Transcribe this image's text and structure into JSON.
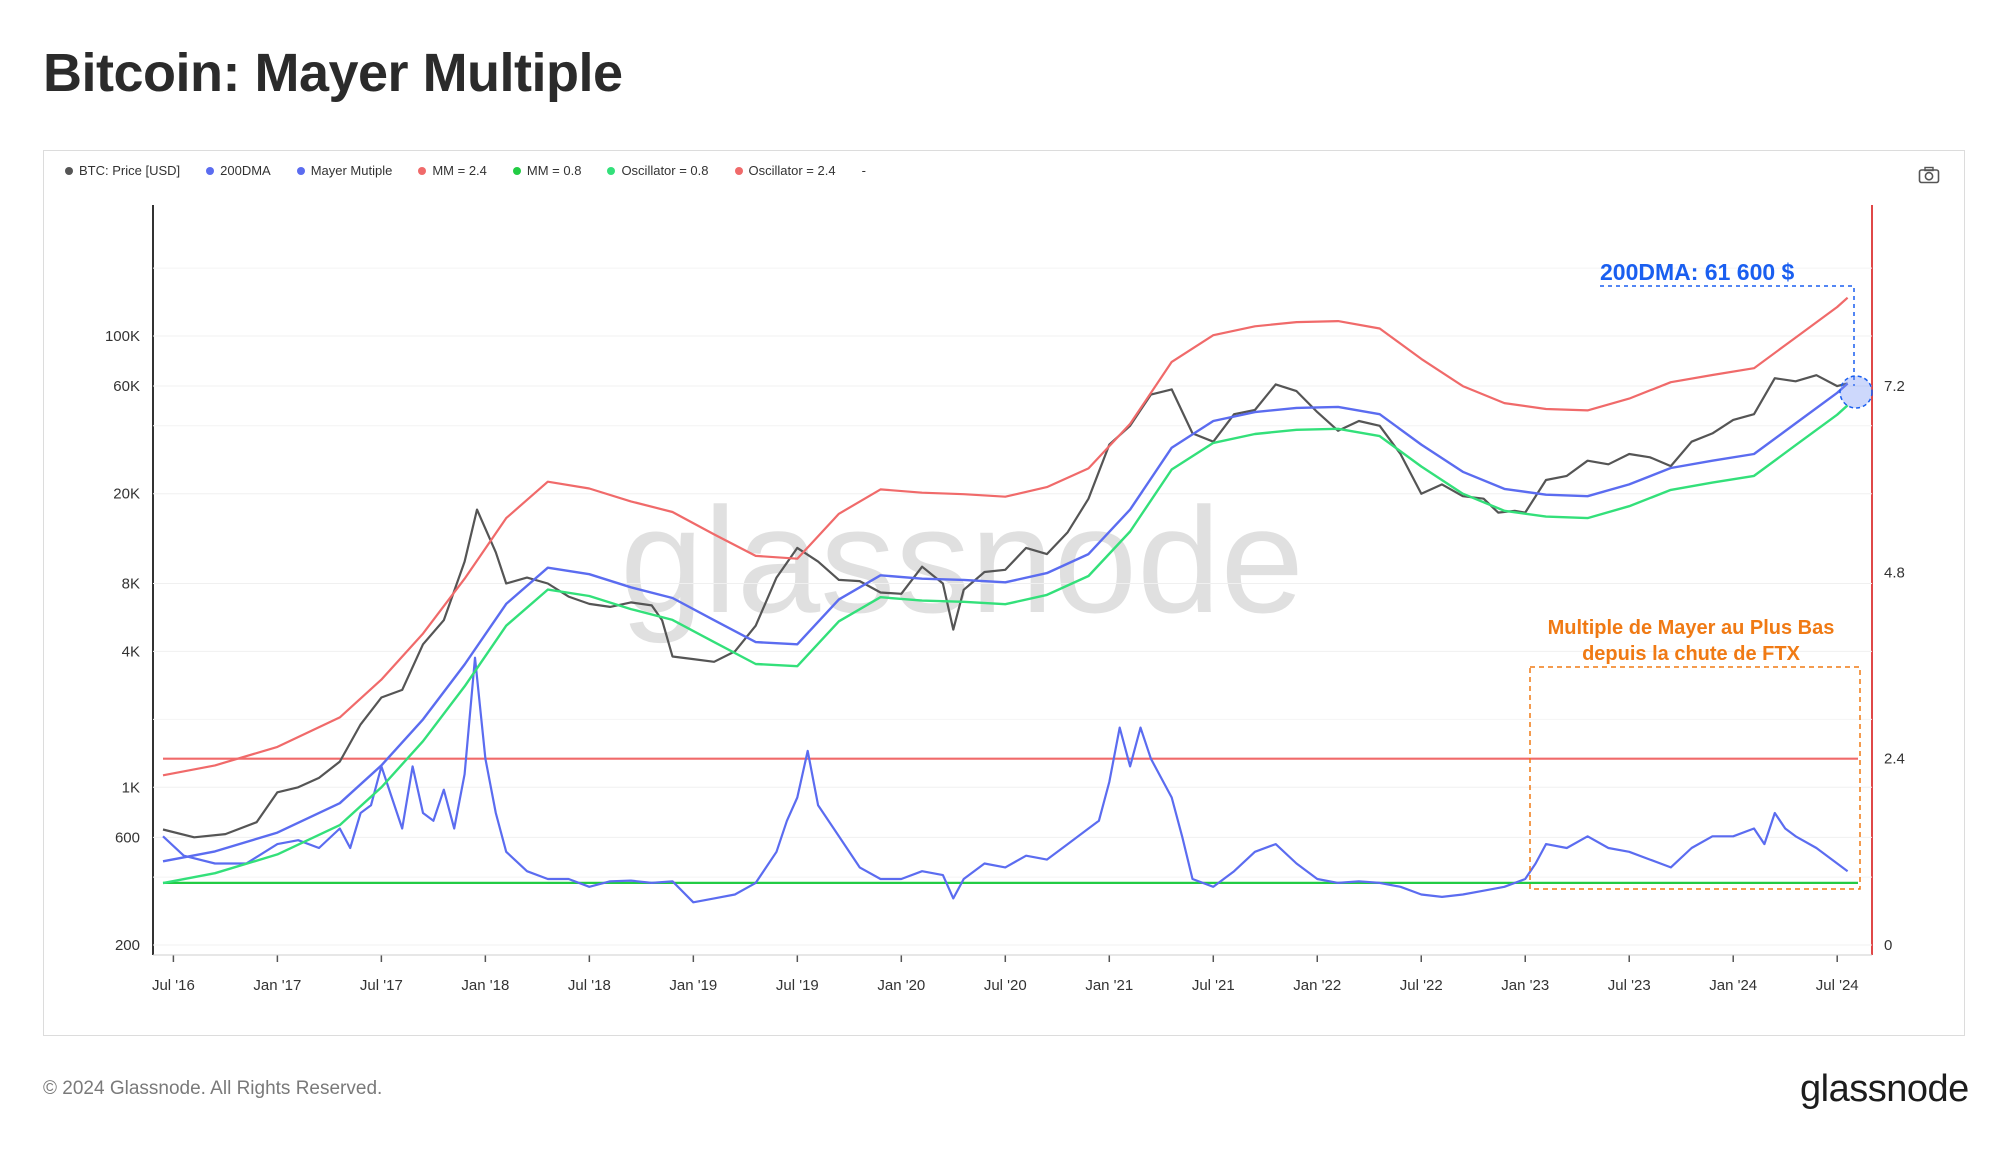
{
  "title": "Bitcoin: Mayer Multiple",
  "legend": [
    {
      "label": "BTC: Price [USD]",
      "color": "#555555"
    },
    {
      "label": "200DMA",
      "color": "#5b6cf0"
    },
    {
      "label": "Mayer Mutiple",
      "color": "#5b6cf0"
    },
    {
      "label": "MM = 2.4",
      "color": "#f06a6a"
    },
    {
      "label": "MM = 0.8",
      "color": "#22cc44"
    },
    {
      "label": "Oscillator = 0.8",
      "color": "#33e07a"
    },
    {
      "label": "Oscillator = 2.4",
      "color": "#f06a6a"
    },
    {
      "label": "-",
      "color": "transparent"
    }
  ],
  "watermark": "glassnode",
  "annotations": {
    "dma": "200DMA: 61 600 $",
    "ftx_line1": "Multiple de Mayer au Plus Bas",
    "ftx_line2": "depuis la chute de FTX"
  },
  "footer": {
    "copyright": "© 2024 Glassnode. All Rights Reserved.",
    "brand": "glassnode"
  },
  "colors": {
    "price": "#555555",
    "dma": "#5b6cf0",
    "mayer": "#5b6cf0",
    "upper_band": "#f06a6a",
    "lower_band": "#33e07a",
    "osc_high": "#f06a6a",
    "osc_low": "#22cc44",
    "dma_annotation": "#1a5ff0",
    "ftx_annotation": "#f07a14"
  },
  "chart_data": {
    "type": "line",
    "y_left_scale": "log",
    "y_left_ticks": [
      "200",
      "600",
      "1K",
      "4K",
      "8K",
      "20K",
      "60K",
      "100K"
    ],
    "y_left_tick_values": [
      200,
      600,
      1000,
      4000,
      8000,
      20000,
      60000,
      100000
    ],
    "y_right_ticks": [
      "0",
      "2.4",
      "4.8",
      "7.2"
    ],
    "y_right_tick_values": [
      0,
      2.4,
      4.8,
      7.2
    ],
    "x_ticks": [
      "Jul '16",
      "Jan '17",
      "Jul '17",
      "Jan '18",
      "Jul '18",
      "Jan '19",
      "Jul '19",
      "Jan '20",
      "Jul '20",
      "Jan '21",
      "Jul '21",
      "Jan '22",
      "Jul '22",
      "Jan '23",
      "Jul '23",
      "Jan '24",
      "Jul '24"
    ],
    "x_tick_values": [
      2016.5,
      2017.0,
      2017.5,
      2018.0,
      2018.5,
      2019.0,
      2019.5,
      2020.0,
      2020.5,
      2021.0,
      2021.5,
      2022.0,
      2022.5,
      2023.0,
      2023.5,
      2024.0,
      2024.5
    ],
    "x_range": [
      2016.45,
      2024.6
    ],
    "oscillator_levels": {
      "high": 2.4,
      "low": 0.8
    },
    "series": [
      {
        "name": "BTC: Price [USD]",
        "axis": "left",
        "x": [
          2016.45,
          2016.6,
          2016.75,
          2016.9,
          2017.0,
          2017.1,
          2017.2,
          2017.3,
          2017.4,
          2017.5,
          2017.6,
          2017.7,
          2017.8,
          2017.9,
          2017.96,
          2018.0,
          2018.05,
          2018.1,
          2018.2,
          2018.3,
          2018.4,
          2018.5,
          2018.6,
          2018.7,
          2018.8,
          2018.85,
          2018.9,
          2019.0,
          2019.1,
          2019.2,
          2019.3,
          2019.4,
          2019.5,
          2019.6,
          2019.7,
          2019.8,
          2019.9,
          2020.0,
          2020.1,
          2020.2,
          2020.25,
          2020.3,
          2020.4,
          2020.5,
          2020.6,
          2020.7,
          2020.8,
          2020.9,
          2021.0,
          2021.1,
          2021.2,
          2021.3,
          2021.4,
          2021.5,
          2021.6,
          2021.7,
          2021.8,
          2021.9,
          2022.0,
          2022.1,
          2022.2,
          2022.3,
          2022.4,
          2022.5,
          2022.6,
          2022.7,
          2022.8,
          2022.87,
          2022.95,
          2023.0,
          2023.1,
          2023.2,
          2023.3,
          2023.4,
          2023.5,
          2023.6,
          2023.7,
          2023.8,
          2023.9,
          2024.0,
          2024.1,
          2024.2,
          2024.3,
          2024.4,
          2024.5,
          2024.55
        ],
        "y": [
          650,
          600,
          620,
          700,
          950,
          1000,
          1100,
          1300,
          1900,
          2500,
          2700,
          4300,
          5500,
          10000,
          17000,
          14000,
          11000,
          8000,
          8500,
          8000,
          7000,
          6500,
          6300,
          6600,
          6400,
          5500,
          3800,
          3700,
          3600,
          4000,
          5200,
          8500,
          11500,
          10000,
          8300,
          8200,
          7300,
          7200,
          9500,
          8000,
          5000,
          7500,
          9000,
          9200,
          11500,
          10800,
          13500,
          19000,
          33000,
          40000,
          55000,
          58000,
          37000,
          34000,
          45000,
          47000,
          61000,
          57000,
          46000,
          38000,
          42000,
          40000,
          30000,
          20000,
          22000,
          19500,
          19000,
          16500,
          16800,
          16500,
          23000,
          24000,
          28000,
          27000,
          30000,
          29000,
          26500,
          34000,
          37000,
          42500,
          45000,
          65000,
          63000,
          67000,
          60000,
          61600
        ]
      },
      {
        "name": "200DMA",
        "axis": "left",
        "x": [
          2016.45,
          2016.7,
          2017.0,
          2017.3,
          2017.5,
          2017.7,
          2017.9,
          2018.1,
          2018.3,
          2018.5,
          2018.7,
          2018.9,
          2019.1,
          2019.3,
          2019.5,
          2019.7,
          2019.9,
          2020.1,
          2020.3,
          2020.5,
          2020.7,
          2020.9,
          2021.1,
          2021.3,
          2021.5,
          2021.7,
          2021.9,
          2022.1,
          2022.3,
          2022.5,
          2022.7,
          2022.9,
          2023.1,
          2023.3,
          2023.5,
          2023.7,
          2023.9,
          2024.1,
          2024.3,
          2024.5,
          2024.55
        ],
        "y": [
          470,
          520,
          630,
          850,
          1250,
          2000,
          3500,
          6500,
          9400,
          8800,
          7700,
          6900,
          5500,
          4400,
          4300,
          6800,
          8700,
          8400,
          8300,
          8100,
          8900,
          10800,
          17000,
          32000,
          42000,
          46000,
          48000,
          48500,
          45000,
          33000,
          25000,
          21000,
          19800,
          19500,
          22000,
          26000,
          28000,
          30000,
          41000,
          56000,
          61600
        ]
      },
      {
        "name": "Mayer Mutiple",
        "axis": "right",
        "x": [
          2016.45,
          2016.55,
          2016.7,
          2016.85,
          2017.0,
          2017.1,
          2017.2,
          2017.3,
          2017.35,
          2017.4,
          2017.45,
          2017.5,
          2017.55,
          2017.6,
          2017.65,
          2017.7,
          2017.75,
          2017.8,
          2017.85,
          2017.9,
          2017.95,
          2018.0,
          2018.05,
          2018.1,
          2018.2,
          2018.3,
          2018.4,
          2018.5,
          2018.6,
          2018.7,
          2018.8,
          2018.9,
          2019.0,
          2019.1,
          2019.2,
          2019.3,
          2019.4,
          2019.45,
          2019.5,
          2019.55,
          2019.6,
          2019.7,
          2019.8,
          2019.9,
          2020.0,
          2020.1,
          2020.2,
          2020.25,
          2020.3,
          2020.4,
          2020.5,
          2020.6,
          2020.7,
          2020.8,
          2020.9,
          2020.95,
          2021.0,
          2021.05,
          2021.1,
          2021.15,
          2021.2,
          2021.3,
          2021.35,
          2021.4,
          2021.5,
          2021.6,
          2021.7,
          2021.8,
          2021.9,
          2022.0,
          2022.1,
          2022.2,
          2022.3,
          2022.4,
          2022.5,
          2022.6,
          2022.7,
          2022.8,
          2022.9,
          2023.0,
          2023.05,
          2023.1,
          2023.2,
          2023.3,
          2023.4,
          2023.5,
          2023.6,
          2023.7,
          2023.8,
          2023.9,
          2024.0,
          2024.1,
          2024.15,
          2024.2,
          2024.25,
          2024.3,
          2024.4,
          2024.5,
          2024.55
        ],
        "y": [
          1.4,
          1.15,
          1.05,
          1.05,
          1.3,
          1.35,
          1.25,
          1.5,
          1.25,
          1.7,
          1.8,
          2.3,
          1.9,
          1.5,
          2.3,
          1.7,
          1.6,
          2.0,
          1.5,
          2.2,
          3.7,
          2.4,
          1.7,
          1.2,
          0.95,
          0.85,
          0.85,
          0.75,
          0.82,
          0.83,
          0.8,
          0.82,
          0.55,
          0.6,
          0.65,
          0.8,
          1.2,
          1.6,
          1.9,
          2.5,
          1.8,
          1.4,
          1.0,
          0.85,
          0.85,
          0.95,
          0.9,
          0.6,
          0.85,
          1.05,
          1.0,
          1.15,
          1.1,
          1.3,
          1.5,
          1.6,
          2.1,
          2.8,
          2.3,
          2.8,
          2.4,
          1.9,
          1.4,
          0.85,
          0.75,
          0.95,
          1.2,
          1.3,
          1.05,
          0.85,
          0.8,
          0.82,
          0.8,
          0.75,
          0.65,
          0.62,
          0.65,
          0.7,
          0.75,
          0.85,
          1.05,
          1.3,
          1.25,
          1.4,
          1.25,
          1.2,
          1.1,
          1.0,
          1.25,
          1.4,
          1.4,
          1.5,
          1.3,
          1.7,
          1.5,
          1.4,
          1.25,
          1.05,
          0.95
        ]
      },
      {
        "name": "MM = 2.4",
        "axis": "left",
        "x": [
          2016.45,
          2016.7,
          2017.0,
          2017.3,
          2017.5,
          2017.7,
          2017.9,
          2018.1,
          2018.3,
          2018.5,
          2018.7,
          2018.9,
          2019.1,
          2019.3,
          2019.5,
          2019.7,
          2019.9,
          2020.1,
          2020.3,
          2020.5,
          2020.7,
          2020.9,
          2021.1,
          2021.3,
          2021.5,
          2021.7,
          2021.9,
          2022.1,
          2022.3,
          2022.5,
          2022.7,
          2022.9,
          2023.1,
          2023.3,
          2023.5,
          2023.7,
          2023.9,
          2024.1,
          2024.3,
          2024.5,
          2024.55
        ],
        "y": [
          1130,
          1250,
          1510,
          2040,
          3000,
          4800,
          8400,
          15600,
          22600,
          21100,
          18500,
          16600,
          13200,
          10600,
          10300,
          16300,
          20900,
          20200,
          19900,
          19400,
          21400,
          25900,
          40800,
          76800,
          100800,
          110400,
          115200,
          116400,
          108000,
          79200,
          60000,
          50400,
          47500,
          46800,
          52800,
          62400,
          67200,
          72000,
          98400,
          134400,
          147800
        ]
      },
      {
        "name": "MM = 0.8",
        "axis": "left",
        "x": [
          2016.45,
          2016.7,
          2017.0,
          2017.3,
          2017.5,
          2017.7,
          2017.9,
          2018.1,
          2018.3,
          2018.5,
          2018.7,
          2018.9,
          2019.1,
          2019.3,
          2019.5,
          2019.7,
          2019.9,
          2020.1,
          2020.3,
          2020.5,
          2020.7,
          2020.9,
          2021.1,
          2021.3,
          2021.5,
          2021.7,
          2021.9,
          2022.1,
          2022.3,
          2022.5,
          2022.7,
          2022.9,
          2023.1,
          2023.3,
          2023.5,
          2023.7,
          2023.9,
          2024.1,
          2024.3,
          2024.5,
          2024.55
        ],
        "y": [
          376,
          416,
          504,
          680,
          1000,
          1600,
          2800,
          5200,
          7520,
          7040,
          6160,
          5520,
          4400,
          3520,
          3440,
          5440,
          6960,
          6720,
          6640,
          6480,
          7120,
          8640,
          13600,
          25600,
          33600,
          36800,
          38400,
          38800,
          36000,
          26400,
          20000,
          16800,
          15840,
          15600,
          17600,
          20800,
          22400,
          24000,
          32800,
          44800,
          49280
        ]
      }
    ]
  }
}
